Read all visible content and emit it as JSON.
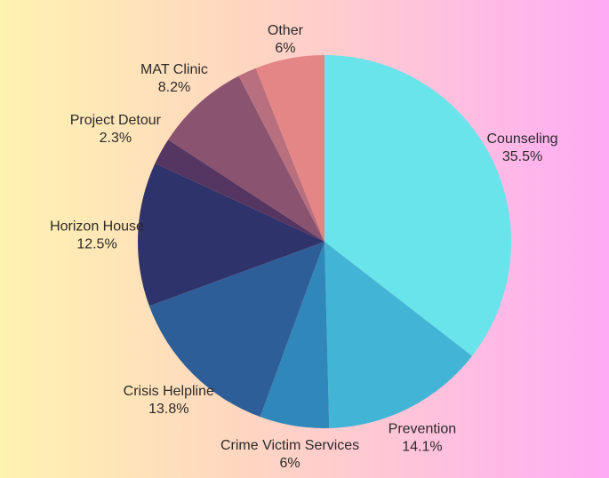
{
  "chart_data": {
    "type": "pie",
    "title": "",
    "start_angle_deg": 0,
    "direction": "clockwise",
    "slices": [
      {
        "label": "Counseling",
        "value": 35.5,
        "display": "35.5%",
        "color": "#68e4ea"
      },
      {
        "label": "Prevention",
        "value": 14.1,
        "display": "14.1%",
        "color": "#42b5d6"
      },
      {
        "label": "Crime Victim Services",
        "value": 6,
        "display": "6%",
        "color": "#3088ba"
      },
      {
        "label": "Crisis Helpline",
        "value": 13.8,
        "display": "13.8%",
        "color": "#2e5e98"
      },
      {
        "label": "Horizon House",
        "value": 12.5,
        "display": "12.5%",
        "color": "#2f336b"
      },
      {
        "label": "Project Detour",
        "value": 2.3,
        "display": "2.3%",
        "color": "#553662"
      },
      {
        "label": "MAT Clinic",
        "value": 8.2,
        "display": "8.2%",
        "color": "#8a5370"
      },
      {
        "label": "",
        "value": 1.6,
        "display": "",
        "color": "#b8707f"
      },
      {
        "label": "Other",
        "value": 6,
        "display": "6%",
        "color": "#e38685"
      }
    ]
  }
}
